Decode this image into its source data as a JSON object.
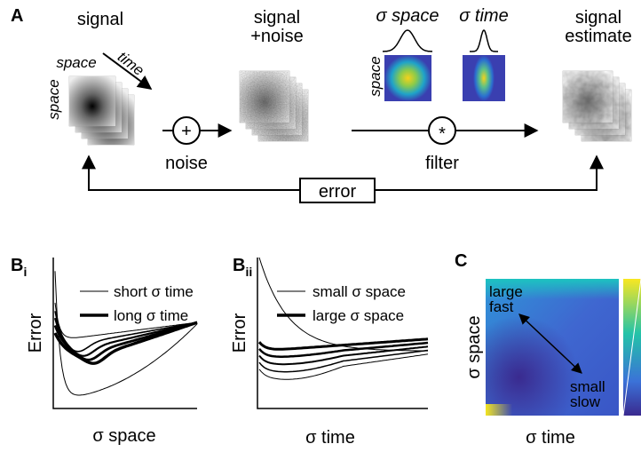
{
  "panel_a": {
    "label": "A",
    "signal": {
      "title": "signal",
      "axis_top": "space",
      "axis_side": "space",
      "axis_time": "time"
    },
    "noisy": {
      "title": [
        "signal",
        "+noise"
      ]
    },
    "kernel_space": {
      "title": "σ space",
      "axis_side": "space"
    },
    "kernel_time": {
      "title": "σ time"
    },
    "estimate": {
      "title": [
        "signal",
        "estimate"
      ]
    },
    "add": {
      "symbol": "+",
      "label": "noise"
    },
    "convolve": {
      "symbol": "*",
      "label": "filter"
    },
    "error_label": "error"
  },
  "panel_bi": {
    "label": "B",
    "sub": "i",
    "ylabel": "Error",
    "xlabel": "σ space",
    "legend": [
      "short σ time",
      "long σ time"
    ]
  },
  "panel_bii": {
    "label": "B",
    "sub": "ii",
    "ylabel": "Error",
    "xlabel": "σ time",
    "legend": [
      "small σ space",
      "large σ space"
    ]
  },
  "panel_c": {
    "label": "C",
    "ylabel": "σ space",
    "xlabel": "σ time",
    "corner_top": [
      "large",
      "fast"
    ],
    "corner_bottom": [
      "small",
      "slow"
    ]
  }
}
